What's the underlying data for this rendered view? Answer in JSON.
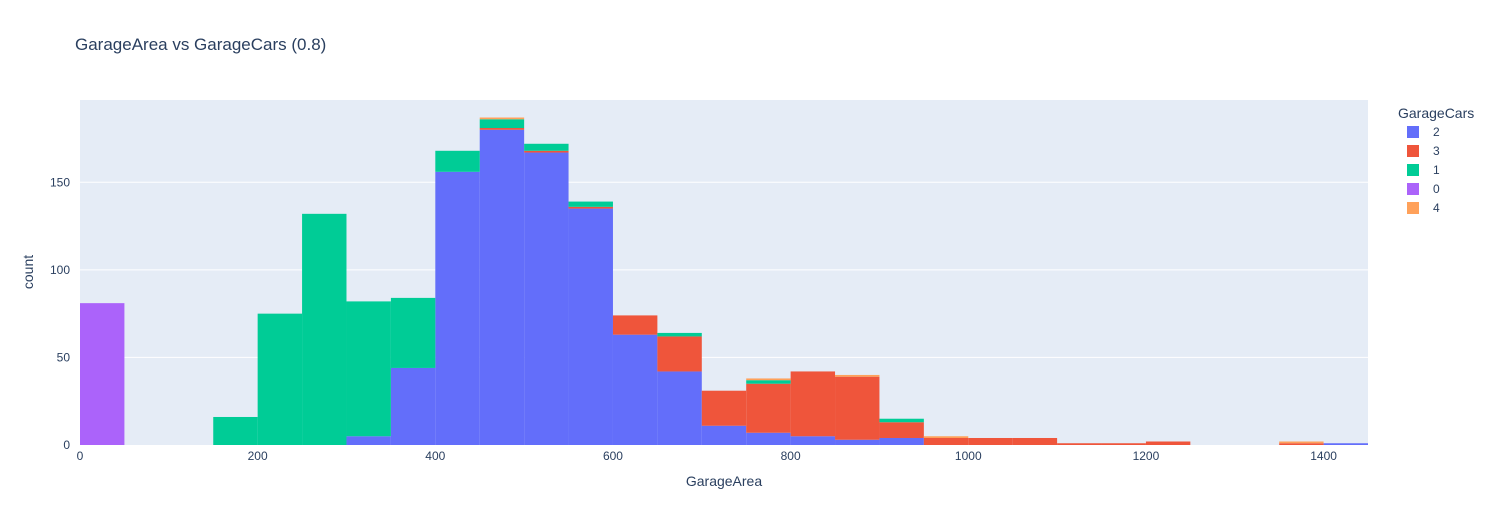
{
  "chart_data": {
    "type": "bar",
    "stacked": true,
    "title": "GarageArea vs GarageCars (0.8)",
    "xlabel": "GarageArea",
    "ylabel": "count",
    "xlim": [
      0,
      1450
    ],
    "ylim": [
      0,
      197
    ],
    "bin_width": 50,
    "x_ticks": [
      0,
      200,
      400,
      600,
      800,
      1000,
      1200,
      1400
    ],
    "y_ticks": [
      0,
      50,
      100,
      150
    ],
    "grid": true,
    "plot_background": "#e5ecf6",
    "legend": {
      "title": "GarageCars",
      "placement": "right"
    },
    "bin_starts": [
      0,
      50,
      100,
      150,
      200,
      250,
      300,
      350,
      400,
      450,
      500,
      550,
      600,
      650,
      700,
      750,
      800,
      850,
      900,
      950,
      1000,
      1050,
      1100,
      1150,
      1200,
      1250,
      1300,
      1350,
      1400
    ],
    "series": [
      {
        "name": "2",
        "color": "#636efa",
        "values": [
          0,
          0,
          0,
          0,
          0,
          0,
          5,
          44,
          156,
          180,
          167,
          135,
          63,
          42,
          11,
          7,
          5,
          3,
          4,
          0,
          0,
          0,
          0,
          0,
          0,
          0,
          0,
          0,
          1
        ]
      },
      {
        "name": "3",
        "color": "#ef553b",
        "values": [
          0,
          0,
          0,
          0,
          0,
          0,
          0,
          0,
          0,
          1,
          1,
          1,
          11,
          20,
          20,
          28,
          37,
          36,
          9,
          4,
          4,
          4,
          1,
          1,
          2,
          0,
          0,
          1,
          0
        ]
      },
      {
        "name": "1",
        "color": "#00cc96",
        "values": [
          0,
          0,
          0,
          16,
          75,
          132,
          77,
          40,
          12,
          5,
          4,
          3,
          0,
          2,
          0,
          2,
          0,
          0,
          2,
          0,
          0,
          0,
          0,
          0,
          0,
          0,
          0,
          0,
          0
        ]
      },
      {
        "name": "0",
        "color": "#ab63fa",
        "values": [
          81,
          0,
          0,
          0,
          0,
          0,
          0,
          0,
          0,
          0,
          0,
          0,
          0,
          0,
          0,
          0,
          0,
          0,
          0,
          0,
          0,
          0,
          0,
          0,
          0,
          0,
          0,
          0,
          0
        ]
      },
      {
        "name": "4",
        "color": "#ffa15a",
        "values": [
          0,
          0,
          0,
          0,
          0,
          0,
          0,
          0,
          0,
          1,
          0,
          0,
          0,
          0,
          0,
          1,
          0,
          1,
          0,
          1,
          0,
          0,
          0,
          0,
          0,
          0,
          0,
          1,
          0
        ]
      }
    ]
  }
}
